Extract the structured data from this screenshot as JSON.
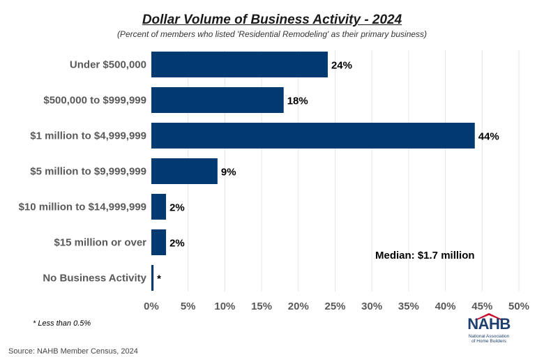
{
  "title": "Dollar Volume of Business Activity - 2024",
  "subtitle": "(Percent of members who listed 'Residential Remodeling' as their primary business)",
  "annotation": "Median: $1.7 million",
  "footnote": "* Less than 0.5%",
  "source": "Source: NAHB Member Census, 2024",
  "logo": {
    "letters": "NAHB",
    "org_name": "National Association of Home Builders"
  },
  "colors": {
    "bar": "#003a70",
    "grid": "#e6e6e6",
    "category_text": "#595959",
    "label_text": "#000000"
  },
  "chart_data": {
    "type": "bar",
    "orientation": "horizontal",
    "categories": [
      "Under $500,000",
      "$500,000 to $999,999",
      "$1 million to $4,999,999",
      "$5 million to $9,999,999",
      "$10 million to $14,999,999",
      "$15 million or over",
      "No Business Activity"
    ],
    "values": [
      24,
      18,
      44,
      9,
      2,
      2,
      0.3
    ],
    "data_labels": [
      "24%",
      "18%",
      "44%",
      "9%",
      "2%",
      "2%",
      "*"
    ],
    "xlim": [
      0,
      50
    ],
    "x_ticks": [
      0,
      5,
      10,
      15,
      20,
      25,
      30,
      35,
      40,
      45,
      50
    ],
    "x_tick_labels": [
      "0%",
      "5%",
      "10%",
      "15%",
      "20%",
      "25%",
      "30%",
      "35%",
      "40%",
      "45%",
      "50%"
    ],
    "grid": true
  }
}
